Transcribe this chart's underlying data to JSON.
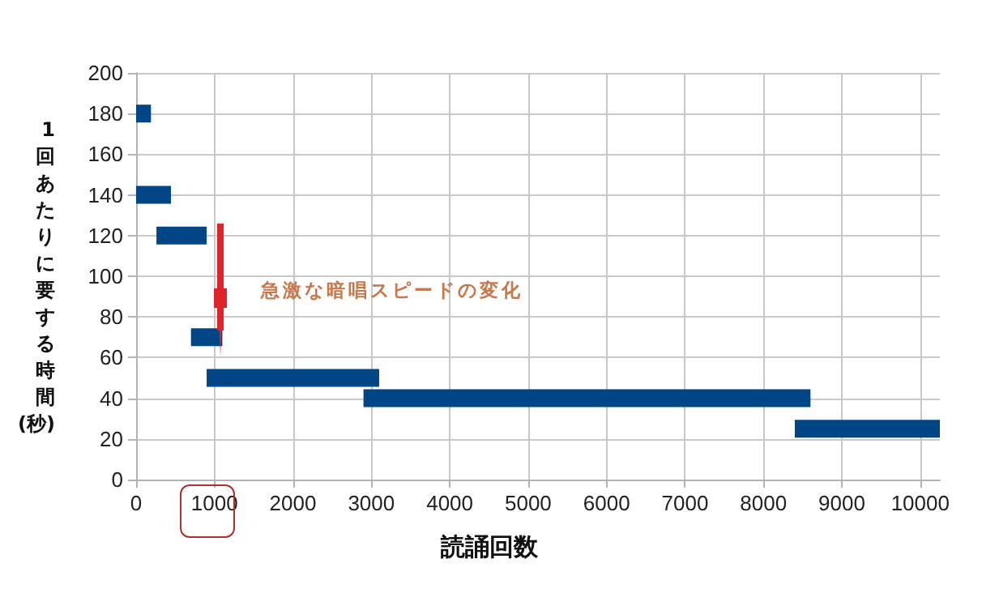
{
  "chart_data": {
    "type": "line",
    "xlabel": "読誦回数",
    "ylabel": "1回あたりに要する時間(秒)",
    "xlim": [
      0,
      10250
    ],
    "xticks": [
      0,
      1000,
      2000,
      3000,
      4000,
      5000,
      6000,
      7000,
      8000,
      9000,
      10000
    ],
    "ylim": [
      0,
      200
    ],
    "yticks": [
      0,
      20,
      40,
      60,
      80,
      100,
      120,
      140,
      160,
      180,
      200
    ],
    "grid": true,
    "marker": "none",
    "line_style": "solid",
    "series": [
      {
        "color": "#004586",
        "x": [
          0,
          190
        ],
        "values": [
          180,
          180
        ]
      },
      {
        "color": "#004586",
        "x": [
          0,
          445
        ],
        "values": [
          140,
          140
        ]
      },
      {
        "color": "#004586",
        "x": [
          260,
          900
        ],
        "values": [
          120,
          120
        ]
      },
      {
        "color": "#004586",
        "x": [
          700,
          1100
        ],
        "values": [
          70,
          70
        ]
      },
      {
        "color": "#004586",
        "x": [
          900,
          3100
        ],
        "values": [
          50,
          50
        ]
      },
      {
        "color": "#004586",
        "x": [
          2900,
          8600
        ],
        "values": [
          40,
          40
        ]
      },
      {
        "color": "#004586",
        "x": [
          8400,
          10250
        ],
        "values": [
          25,
          25
        ]
      }
    ],
    "annotations": [
      "急激な暗唱スピードの変化"
    ]
  }
}
